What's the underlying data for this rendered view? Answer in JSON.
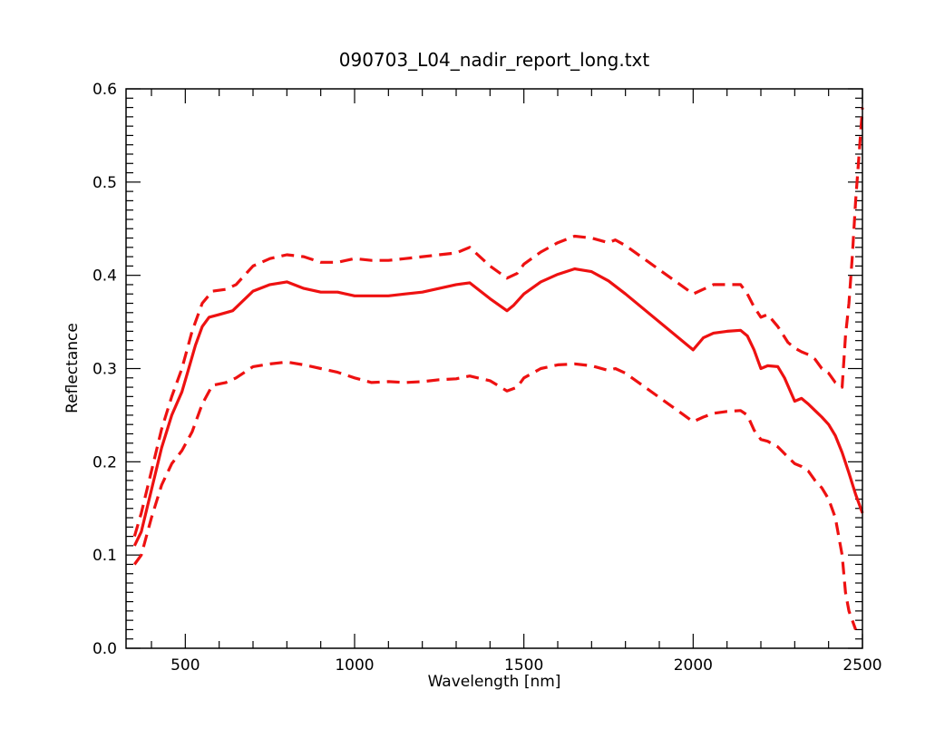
{
  "chart_data": {
    "type": "line",
    "title": "090703_L04_nadir_report_long.txt",
    "xlabel": "Wavelength [nm]",
    "ylabel": "Reflectance",
    "xlim": [
      325,
      2500
    ],
    "ylim": [
      0.0,
      0.6
    ],
    "x_ticks": [
      500,
      1000,
      1500,
      2000,
      2500
    ],
    "y_ticks": [
      0.0,
      0.1,
      0.2,
      0.3,
      0.4,
      0.5,
      0.6
    ],
    "x_tick_labels": [
      "500",
      "1000",
      "1500",
      "2000",
      "2500"
    ],
    "y_tick_labels": [
      "0.0",
      "0.1",
      "0.2",
      "0.3",
      "0.4",
      "0.5",
      "0.6"
    ],
    "grid": false,
    "legend": "none",
    "line_color": "#ee1111",
    "series": [
      {
        "style": "solid",
        "x": [
          350,
          370,
          400,
          430,
          460,
          490,
          510,
          530,
          550,
          570,
          600,
          640,
          700,
          750,
          800,
          850,
          900,
          950,
          1000,
          1100,
          1150,
          1200,
          1250,
          1300,
          1340,
          1400,
          1450,
          1470,
          1500,
          1550,
          1600,
          1650,
          1700,
          1750,
          1800,
          2000,
          2030,
          2060,
          2100,
          2140,
          2160,
          2180,
          2200,
          2220,
          2250,
          2270,
          2300,
          2320,
          2340,
          2360,
          2380,
          2400,
          2420,
          2440,
          2460,
          2480,
          2500
        ],
        "y": [
          0.11,
          0.125,
          0.17,
          0.215,
          0.25,
          0.275,
          0.3,
          0.325,
          0.345,
          0.355,
          0.358,
          0.362,
          0.383,
          0.39,
          0.393,
          0.386,
          0.382,
          0.382,
          0.378,
          0.378,
          0.38,
          0.382,
          0.386,
          0.39,
          0.392,
          0.375,
          0.362,
          0.368,
          0.38,
          0.393,
          0.401,
          0.407,
          0.404,
          0.394,
          0.38,
          0.32,
          0.333,
          0.338,
          0.34,
          0.341,
          0.335,
          0.32,
          0.3,
          0.303,
          0.302,
          0.29,
          0.265,
          0.268,
          0.262,
          0.255,
          0.248,
          0.24,
          0.228,
          0.21,
          0.188,
          0.165,
          0.145
        ]
      },
      {
        "style": "dashed",
        "x": [
          350,
          370,
          400,
          430,
          460,
          490,
          520,
          550,
          580,
          620,
          650,
          700,
          750,
          800,
          850,
          900,
          950,
          1000,
          1050,
          1100,
          1150,
          1200,
          1250,
          1300,
          1340,
          1400,
          1450,
          1480,
          1500,
          1550,
          1600,
          1650,
          1700,
          1750,
          1770,
          1800,
          2000,
          2030,
          2060,
          2100,
          2140,
          2160,
          2180,
          2200,
          2220,
          2250,
          2280,
          2300,
          2320,
          2340,
          2360,
          2380,
          2400,
          2420,
          2440,
          2450,
          2460,
          2470,
          2480,
          2490,
          2500
        ],
        "y": [
          0.12,
          0.145,
          0.19,
          0.235,
          0.27,
          0.3,
          0.34,
          0.37,
          0.383,
          0.385,
          0.39,
          0.41,
          0.418,
          0.422,
          0.42,
          0.414,
          0.414,
          0.418,
          0.416,
          0.416,
          0.418,
          0.42,
          0.422,
          0.424,
          0.43,
          0.41,
          0.397,
          0.402,
          0.412,
          0.425,
          0.435,
          0.442,
          0.44,
          0.435,
          0.438,
          0.432,
          0.38,
          0.385,
          0.39,
          0.39,
          0.39,
          0.38,
          0.366,
          0.355,
          0.358,
          0.345,
          0.328,
          0.322,
          0.318,
          0.315,
          0.31,
          0.3,
          0.295,
          0.285,
          0.28,
          0.335,
          0.37,
          0.42,
          0.48,
          0.53,
          0.58
        ]
      },
      {
        "style": "dashed",
        "x": [
          350,
          370,
          400,
          430,
          460,
          490,
          520,
          550,
          580,
          620,
          650,
          700,
          750,
          800,
          850,
          900,
          950,
          1000,
          1050,
          1100,
          1150,
          1200,
          1250,
          1300,
          1340,
          1400,
          1450,
          1480,
          1500,
          1550,
          1600,
          1650,
          1700,
          1750,
          1770,
          1800,
          2000,
          2030,
          2060,
          2100,
          2140,
          2160,
          2180,
          2200,
          2220,
          2250,
          2280,
          2300,
          2320,
          2340,
          2360,
          2380,
          2400,
          2420,
          2440,
          2450,
          2460,
          2470,
          2480
        ],
        "y": [
          0.09,
          0.1,
          0.14,
          0.175,
          0.198,
          0.212,
          0.232,
          0.262,
          0.282,
          0.285,
          0.29,
          0.302,
          0.305,
          0.307,
          0.304,
          0.3,
          0.296,
          0.29,
          0.285,
          0.286,
          0.285,
          0.286,
          0.288,
          0.289,
          0.292,
          0.287,
          0.276,
          0.28,
          0.29,
          0.3,
          0.304,
          0.305,
          0.303,
          0.298,
          0.3,
          0.295,
          0.243,
          0.248,
          0.252,
          0.254,
          0.255,
          0.25,
          0.234,
          0.224,
          0.222,
          0.216,
          0.205,
          0.198,
          0.195,
          0.19,
          0.18,
          0.172,
          0.16,
          0.14,
          0.1,
          0.06,
          0.04,
          0.03,
          0.02
        ]
      }
    ]
  }
}
